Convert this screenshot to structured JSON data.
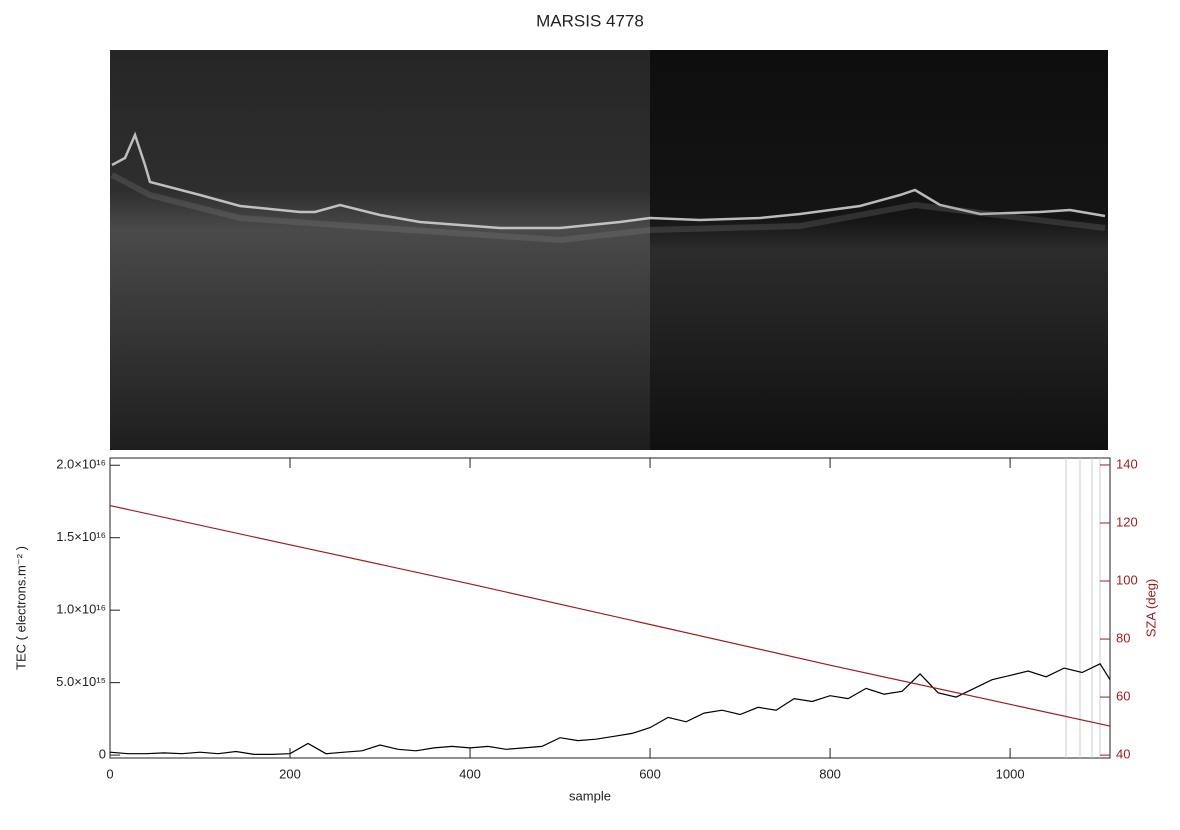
{
  "chart_data": {
    "type": "line",
    "title": "MARSIS 4778",
    "xlabel": "sample",
    "ylabel": "TEC ( electrons.m⁻² )",
    "y2label": "SZA (deg)",
    "xlim": [
      0,
      1111
    ],
    "xticks": [
      0,
      200,
      400,
      600,
      800,
      1000
    ],
    "ylim": [
      -200000000000000.0,
      2.05e+16
    ],
    "yticks": [
      0,
      {
        "value": 5000000000000000.0,
        "label": "5.0×10¹⁵"
      },
      {
        "value": 1e+16,
        "label": "1.0×10¹⁶"
      },
      {
        "value": 1.5e+16,
        "label": "1.5×10¹⁶"
      },
      {
        "value": 2e+16,
        "label": "2.0×10¹⁶"
      }
    ],
    "y2lim": [
      39,
      142.4
    ],
    "y2ticks": [
      40,
      60,
      80,
      100,
      120,
      140
    ],
    "y2color": "#9b1c1c",
    "series": [
      {
        "color": "#000000",
        "x": [
          0,
          20,
          40,
          60,
          80,
          100,
          120,
          140,
          160,
          180,
          200,
          220,
          240,
          260,
          280,
          300,
          320,
          340,
          360,
          380,
          400,
          420,
          440,
          460,
          480,
          500,
          520,
          540,
          560,
          580,
          600,
          620,
          640,
          660,
          680,
          700,
          720,
          740,
          760,
          780,
          800,
          820,
          840,
          860,
          880,
          900,
          920,
          940,
          960,
          980,
          1000,
          1020,
          1040,
          1060,
          1080,
          1100,
          1111
        ],
        "values": [
          200000000000000.0,
          100000000000000.0,
          100000000000000.0,
          150000000000000.0,
          100000000000000.0,
          200000000000000.0,
          100000000000000.0,
          250000000000000.0,
          50000000000000.0,
          50000000000000.0,
          100000000000000.0,
          800000000000000.0,
          100000000000000.0,
          200000000000000.0,
          300000000000000.0,
          700000000000000.0,
          400000000000000.0,
          300000000000000.0,
          500000000000000.0,
          600000000000000.0,
          500000000000000.0,
          600000000000000.0,
          400000000000000.0,
          500000000000000.0,
          600000000000000.0,
          1200000000000000.0,
          1000000000000000.0,
          1100000000000000.0,
          1300000000000000.0,
          1500000000000000.0,
          1900000000000000.0,
          2600000000000000.0,
          2300000000000000.0,
          2900000000000000.0,
          3100000000000000.0,
          2800000000000000.0,
          3300000000000000.0,
          3100000000000000.0,
          3900000000000000.0,
          3700000000000000.0,
          4100000000000000.0,
          3900000000000000.0,
          4600000000000000.0,
          4200000000000000.0,
          4400000000000000.0,
          5600000000000000.0,
          4300000000000000.0,
          4000000000000000.0,
          4600000000000000.0,
          5200000000000000.0,
          5500000000000000.0,
          5800000000000000.0,
          5400000000000000.0,
          6000000000000000.0,
          5700000000000000.0,
          6300000000000000.0,
          5200000000000000.0
        ]
      },
      {
        "color": "#9b1c1c",
        "axis": "y2",
        "x": [
          0,
          200,
          400,
          600,
          800,
          1000,
          1111
        ],
        "values": [
          126,
          112.5,
          99,
          85,
          71,
          57.5,
          50
        ]
      }
    ]
  }
}
